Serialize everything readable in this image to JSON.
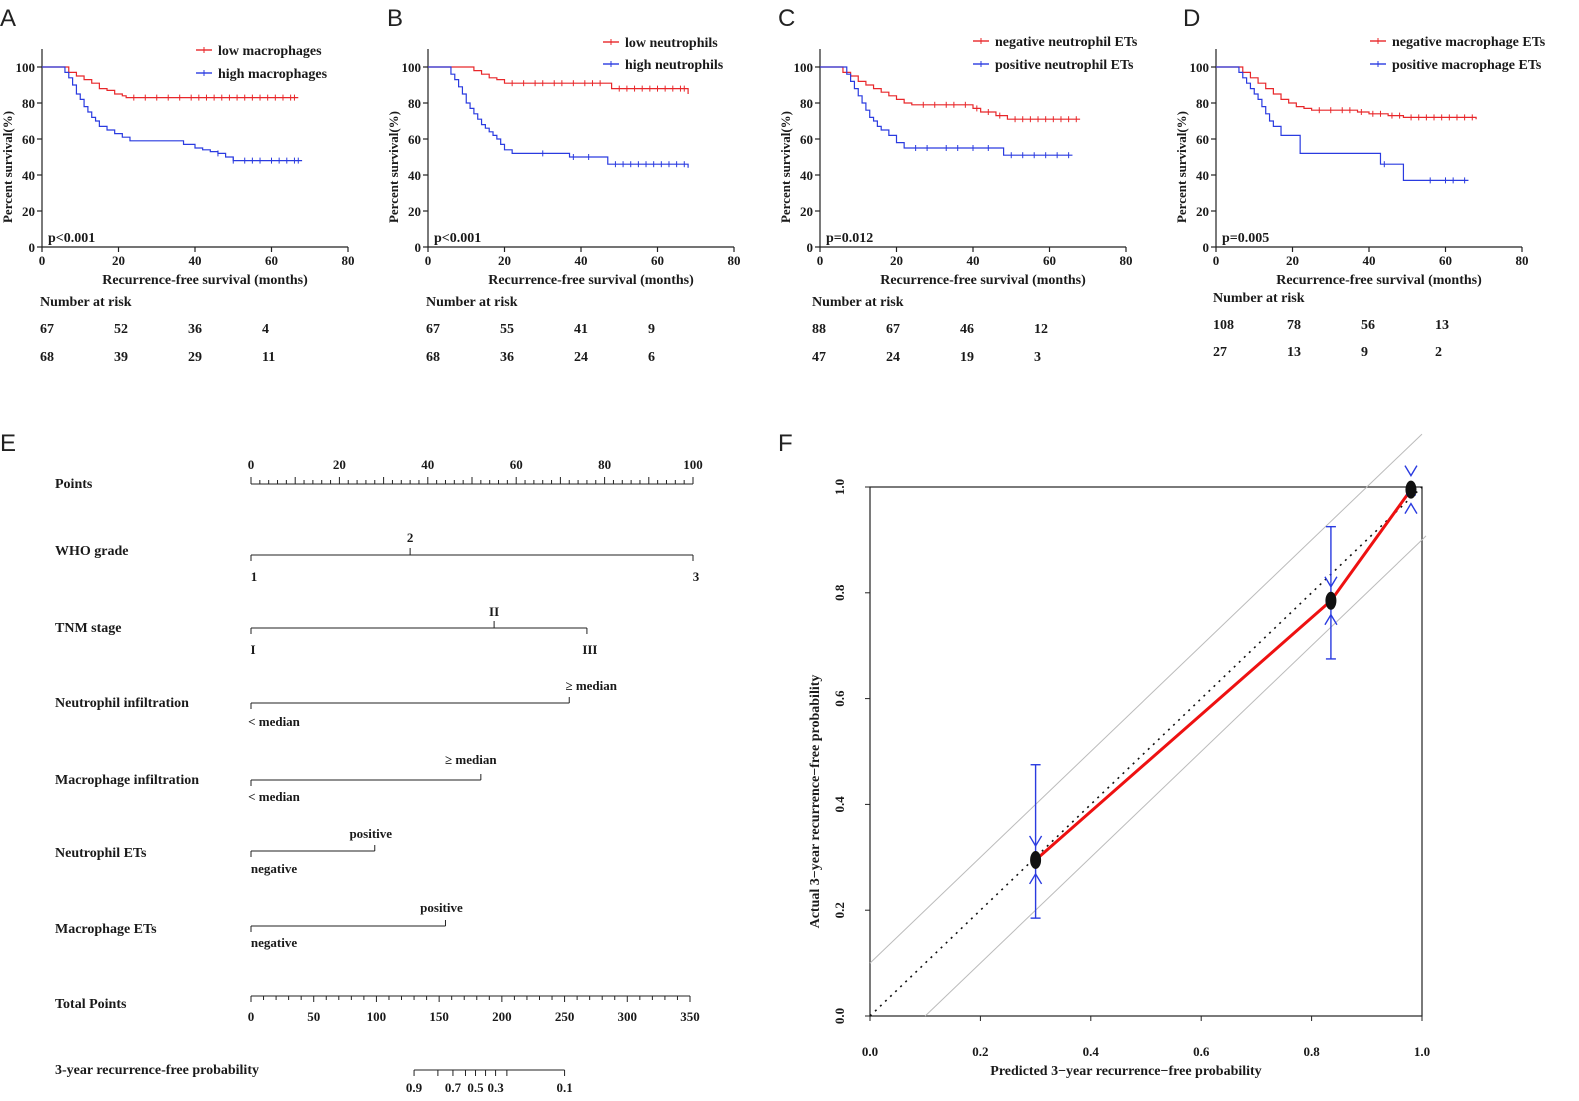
{
  "chart_data": [
    {
      "panel": "A",
      "type": "line",
      "chart_kind": "kaplan-meier",
      "xlabel": "Recurrence-free survival (months)",
      "ylabel": "Percent survival(%)",
      "xlim": [
        0,
        80
      ],
      "ylim": [
        0,
        100
      ],
      "xticks": [
        0,
        20,
        40,
        60,
        80
      ],
      "yticks": [
        0,
        20,
        40,
        60,
        80,
        100
      ],
      "pvalue": "p<0.001",
      "series": [
        {
          "name": "low  macrophages",
          "color": "#e8272a",
          "x": [
            0,
            5,
            7,
            9,
            11,
            13,
            15,
            17,
            19,
            21,
            22,
            67
          ],
          "y": [
            100,
            100,
            97,
            95,
            93,
            91,
            88,
            87,
            85,
            84,
            83,
            83
          ],
          "censor": [
            24,
            27,
            30,
            33,
            36,
            39,
            41,
            43,
            45,
            47,
            49,
            51,
            53,
            55,
            57,
            59,
            61,
            63,
            65,
            66
          ]
        },
        {
          "name": "high macrophages",
          "color": "#2a3be0",
          "x": [
            0,
            5,
            6,
            7,
            8,
            9,
            10,
            11,
            12,
            13,
            14,
            15,
            17,
            19,
            21,
            23,
            35,
            37,
            40,
            42,
            44,
            46,
            48,
            50,
            68
          ],
          "y": [
            100,
            100,
            97,
            94,
            90,
            85,
            82,
            78,
            75,
            72,
            70,
            67,
            65,
            63,
            61,
            59,
            59,
            57,
            55,
            54,
            53,
            52,
            50,
            48,
            48
          ],
          "censor": [
            46,
            50,
            53,
            55,
            57,
            60,
            62,
            64,
            66,
            67
          ]
        }
      ],
      "risk_table": {
        "title": "Number at risk",
        "rows": [
          [
            "67",
            "52",
            "36",
            "4"
          ],
          [
            "68",
            "39",
            "29",
            "11"
          ]
        ]
      }
    },
    {
      "panel": "B",
      "type": "line",
      "chart_kind": "kaplan-meier",
      "xlabel": "Recurrence-free survival (months)",
      "ylabel": "Percent survival(%)",
      "xlim": [
        0,
        80
      ],
      "ylim": [
        0,
        100
      ],
      "xticks": [
        0,
        20,
        40,
        60,
        80
      ],
      "yticks": [
        0,
        20,
        40,
        60,
        80,
        100
      ],
      "pvalue": "p<0.001",
      "series": [
        {
          "name": "low  neutrophils",
          "color": "#e8272a",
          "x": [
            0,
            10,
            12,
            14,
            16,
            18,
            20,
            37,
            48,
            68
          ],
          "y": [
            100,
            100,
            98,
            96,
            94,
            93,
            91,
            91,
            88,
            85
          ],
          "censor": [
            22,
            25,
            28,
            30,
            33,
            35,
            38,
            41,
            43,
            45,
            50,
            52,
            54,
            56,
            58,
            60,
            62,
            64,
            66,
            67
          ]
        },
        {
          "name": "high neutrophils",
          "color": "#2a3be0",
          "x": [
            0,
            5,
            6,
            7,
            8,
            9,
            10,
            11,
            12,
            13,
            14,
            15,
            16,
            17,
            18,
            19,
            20,
            22,
            35,
            37,
            47,
            68
          ],
          "y": [
            100,
            100,
            96,
            93,
            89,
            85,
            80,
            77,
            74,
            71,
            68,
            66,
            64,
            62,
            60,
            57,
            54,
            52,
            52,
            50,
            46,
            44
          ],
          "censor": [
            30,
            38,
            42,
            49,
            51,
            53,
            55,
            57,
            59,
            61,
            63,
            65,
            67
          ]
        }
      ],
      "risk_table": {
        "title": "Number at risk",
        "rows": [
          [
            "67",
            "55",
            "41",
            "9"
          ],
          [
            "68",
            "36",
            "24",
            "6"
          ]
        ]
      }
    },
    {
      "panel": "C",
      "type": "line",
      "chart_kind": "kaplan-meier",
      "xlabel": "Recurrence-free survival (months)",
      "ylabel": "Percent survival(%)",
      "xlim": [
        0,
        80
      ],
      "ylim": [
        0,
        100
      ],
      "xticks": [
        0,
        20,
        40,
        60,
        80
      ],
      "yticks": [
        0,
        20,
        40,
        60,
        80,
        100
      ],
      "pvalue": "p=0.012",
      "series": [
        {
          "name": "negative neutrophil ETs",
          "color": "#e8272a",
          "x": [
            0,
            4,
            6,
            8,
            10,
            12,
            14,
            16,
            18,
            20,
            22,
            24,
            37,
            40,
            42,
            46,
            49,
            68
          ],
          "y": [
            100,
            100,
            97,
            95,
            92,
            90,
            88,
            86,
            84,
            82,
            80,
            79,
            79,
            77,
            75,
            73,
            71,
            71
          ],
          "censor": [
            27,
            30,
            33,
            35,
            38,
            41,
            44,
            47,
            51,
            53,
            55,
            57,
            59,
            61,
            63,
            65,
            67
          ]
        },
        {
          "name": "positive neutrophil ETs",
          "color": "#2a3be0",
          "x": [
            0,
            6,
            7,
            8,
            9,
            10,
            11,
            12,
            13,
            14,
            15,
            16,
            18,
            20,
            22,
            46,
            48,
            66
          ],
          "y": [
            100,
            100,
            96,
            92,
            88,
            84,
            80,
            76,
            72,
            70,
            67,
            65,
            62,
            58,
            55,
            55,
            51,
            51
          ],
          "censor": [
            25,
            28,
            33,
            36,
            40,
            44,
            50,
            53,
            56,
            59,
            62,
            65
          ]
        }
      ],
      "risk_table": {
        "title": "Number at risk",
        "rows": [
          [
            "88",
            "67",
            "46",
            "12"
          ],
          [
            "47",
            "24",
            "19",
            "3"
          ]
        ]
      }
    },
    {
      "panel": "D",
      "type": "line",
      "chart_kind": "kaplan-meier",
      "xlabel": "Recurrence-free survival (months)",
      "ylabel": "Percent survival(%)",
      "xlim": [
        0,
        80
      ],
      "ylim": [
        0,
        100
      ],
      "xticks": [
        0,
        20,
        40,
        60,
        80
      ],
      "yticks": [
        0,
        20,
        40,
        60,
        80,
        100
      ],
      "pvalue": "p=0.005",
      "series": [
        {
          "name": "negative macrophage ETs",
          "color": "#e8272a",
          "x": [
            0,
            5,
            7,
            9,
            11,
            13,
            15,
            17,
            19,
            21,
            23,
            25,
            37,
            40,
            45,
            49,
            68
          ],
          "y": [
            100,
            100,
            97,
            94,
            91,
            88,
            85,
            82,
            80,
            78,
            77,
            76,
            75,
            74,
            73,
            72,
            71
          ],
          "censor": [
            27,
            30,
            33,
            35,
            38,
            41,
            43,
            46,
            48,
            51,
            53,
            55,
            57,
            59,
            61,
            63,
            65,
            67
          ]
        },
        {
          "name": "positive macrophage ETs",
          "color": "#2a3be0",
          "x": [
            0,
            5,
            6,
            7,
            8,
            9,
            10,
            11,
            12,
            13,
            14,
            15,
            17,
            22,
            42,
            43,
            49,
            66
          ],
          "y": [
            100,
            100,
            97,
            94,
            91,
            88,
            85,
            82,
            78,
            74,
            70,
            67,
            62,
            52,
            52,
            46,
            37,
            37
          ],
          "censor": [
            44,
            56,
            60,
            62,
            65
          ]
        }
      ],
      "risk_table": {
        "title": "Number at risk",
        "rows": [
          [
            "108",
            "78",
            "56",
            "13"
          ],
          [
            "27",
            "13",
            "9",
            "2"
          ]
        ]
      }
    },
    {
      "panel": "E",
      "type": "nomogram",
      "points_ticks": [
        "0",
        "20",
        "40",
        "60",
        "80",
        "100"
      ],
      "rows": [
        {
          "label": "Points"
        },
        {
          "label": "WHO grade",
          "scale": [
            {
              "text": "1",
              "value": 1
            },
            {
              "text": "2",
              "value": 2
            },
            {
              "text": "3",
              "value": 3
            }
          ],
          "points": [
            0,
            36,
            100
          ]
        },
        {
          "label": "TNM stage",
          "scale": [
            {
              "text": "I"
            },
            {
              "text": "II"
            },
            {
              "text": "III"
            }
          ],
          "points": [
            0,
            55,
            76
          ]
        },
        {
          "label": "Neutrophil infiltration",
          "scale": [
            {
              "text": "< median"
            },
            {
              "text": "≥ median"
            }
          ],
          "points": [
            0,
            72
          ]
        },
        {
          "label": "Macrophage infiltration",
          "scale": [
            {
              "text": "< median"
            },
            {
              "text": "≥ median"
            }
          ],
          "points": [
            0,
            52
          ]
        },
        {
          "label": "Neutrophil ETs",
          "scale": [
            {
              "text": "negative"
            },
            {
              "text": "positive"
            }
          ],
          "points": [
            0,
            28
          ]
        },
        {
          "label": "Macrophage ETs",
          "scale": [
            {
              "text": "negative"
            },
            {
              "text": "positive"
            }
          ],
          "points": [
            0,
            44
          ]
        },
        {
          "label": "Total Points",
          "ticks": [
            "0",
            "50",
            "100",
            "150",
            "200",
            "250",
            "300",
            "350"
          ],
          "range": [
            0,
            350
          ]
        },
        {
          "label": "3-year recurrence-free probability",
          "ticks": [
            "0.9",
            "0.7",
            "0.5",
            "0.3",
            "0.1"
          ],
          "probabilities": [
            0.9,
            0.8,
            0.7,
            0.6,
            0.5,
            0.4,
            0.3,
            0.2,
            0.1
          ],
          "total_points_at": [
            130,
            149,
            161,
            171,
            179,
            187,
            195,
            204,
            250
          ]
        }
      ]
    },
    {
      "panel": "F",
      "type": "line",
      "chart_kind": "calibration",
      "xlabel": "Predicted 3−year recurrence−free probability",
      "ylabel": "Actual 3−year recurrence−free probability",
      "xlim": [
        0,
        1
      ],
      "ylim": [
        0,
        1
      ],
      "xticks": [
        "0.0",
        "0.2",
        "0.4",
        "0.6",
        "0.8",
        "1.0"
      ],
      "yticks": [
        "0.0",
        "0.2",
        "0.4",
        "0.6",
        "0.8",
        "1.0"
      ],
      "ideal_line": [
        [
          0,
          0
        ],
        [
          1,
          1
        ]
      ],
      "reference_lines": [
        [
          [
            0,
            0.1
          ],
          [
            0.9,
            1.0
          ]
        ],
        [
          [
            0.1,
            0
          ],
          [
            1.0,
            0.9
          ]
        ]
      ],
      "series": [
        {
          "name": "observed",
          "color": "#ee1111",
          "x": [
            0.3,
            0.835,
            0.98
          ],
          "y": [
            0.295,
            0.785,
            0.995
          ],
          "ci_low": [
            0.185,
            0.675,
            0.985
          ],
          "ci_high": [
            0.475,
            0.925,
            1.0
          ]
        }
      ]
    }
  ],
  "panel_labels": [
    "A",
    "B",
    "C",
    "D",
    "E",
    "F"
  ]
}
